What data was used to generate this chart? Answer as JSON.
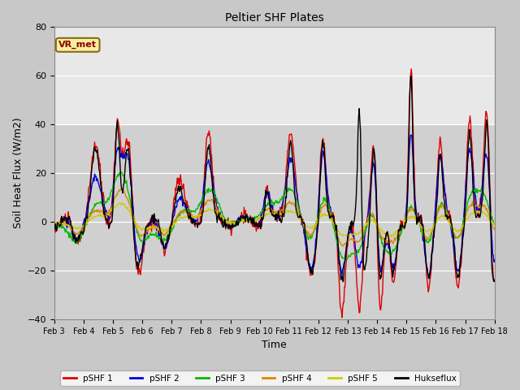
{
  "title": "Peltier SHF Plates",
  "xlabel": "Time",
  "ylabel": "Soil Heat Flux (W/m2)",
  "ylim": [
    -40,
    80
  ],
  "figsize": [
    6.4,
    4.8
  ],
  "dpi": 100,
  "background_color": "#c8c8c8",
  "plot_bg_upper": "#e8e8e8",
  "plot_bg_lower": "#d0d0d0",
  "annotation_label": "VR_met",
  "annotation_bg": "#f5f0a0",
  "annotation_border": "#8b6914",
  "annotation_text_color": "#8b0000",
  "xtick_labels": [
    "Feb 3",
    "Feb 4",
    "Feb 5",
    "Feb 6",
    "Feb 7",
    "Feb 8",
    "Feb 9",
    "Feb 10",
    "Feb 11",
    "Feb 12",
    "Feb 13",
    "Feb 14",
    "Feb 15",
    "Feb 16",
    "Feb 17",
    "Feb 18"
  ],
  "series_colors": {
    "pSHF 1": "#dd0000",
    "pSHF 2": "#0000dd",
    "pSHF 3": "#00bb00",
    "pSHF 4": "#dd8800",
    "pSHF 5": "#cccc00",
    "Hukseflux": "#000000"
  },
  "legend_entries": [
    "pSHF 1",
    "pSHF 2",
    "pSHF 3",
    "pSHF 4",
    "pSHF 5",
    "Hukseflux"
  ]
}
